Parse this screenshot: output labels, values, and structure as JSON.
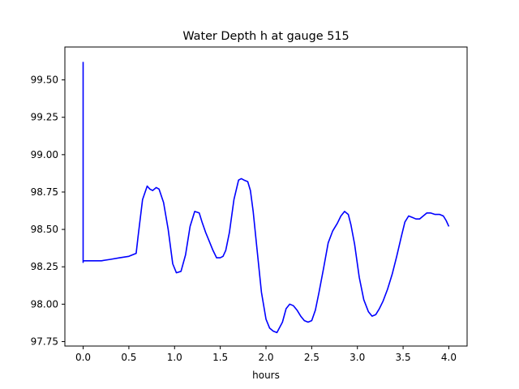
{
  "chart_data": {
    "type": "line",
    "title": "Water Depth h at gauge 515",
    "xlabel": "hours",
    "ylabel": "",
    "xlim": [
      -0.2,
      4.2
    ],
    "ylim": [
      97.72,
      99.72
    ],
    "xticks": [
      0.0,
      0.5,
      1.0,
      1.5,
      2.0,
      2.5,
      3.0,
      3.5,
      4.0
    ],
    "xtick_labels": [
      "0.0",
      "0.5",
      "1.0",
      "1.5",
      "2.0",
      "2.5",
      "3.0",
      "3.5",
      "4.0"
    ],
    "yticks": [
      97.75,
      98.0,
      98.25,
      98.5,
      98.75,
      99.0,
      99.25,
      99.5
    ],
    "ytick_labels": [
      "97.75",
      "98.00",
      "98.25",
      "98.50",
      "98.75",
      "99.00",
      "99.25",
      "99.50"
    ],
    "grid": false,
    "series": [
      {
        "color": "#0000ff",
        "x": [
          0.0,
          0.0,
          0.0,
          0.1,
          0.2,
          0.3,
          0.4,
          0.5,
          0.58,
          0.6,
          0.65,
          0.7,
          0.73,
          0.76,
          0.8,
          0.83,
          0.88,
          0.93,
          0.98,
          1.02,
          1.07,
          1.12,
          1.17,
          1.22,
          1.27,
          1.3,
          1.34,
          1.38,
          1.42,
          1.46,
          1.5,
          1.53,
          1.56,
          1.6,
          1.65,
          1.7,
          1.73,
          1.76,
          1.8,
          1.83,
          1.86,
          1.9,
          1.95,
          2.0,
          2.04,
          2.08,
          2.12,
          2.18,
          2.22,
          2.26,
          2.3,
          2.34,
          2.38,
          2.42,
          2.46,
          2.5,
          2.54,
          2.58,
          2.63,
          2.68,
          2.73,
          2.78,
          2.82,
          2.86,
          2.9,
          2.93,
          2.97,
          3.02,
          3.07,
          3.12,
          3.16,
          3.2,
          3.24,
          3.28,
          3.33,
          3.38,
          3.43,
          3.48,
          3.52,
          3.56,
          3.6,
          3.64,
          3.68,
          3.72,
          3.76,
          3.8,
          3.85,
          3.9,
          3.94,
          3.97,
          4.0
        ],
        "y": [
          99.62,
          98.28,
          98.29,
          98.29,
          98.29,
          98.3,
          98.31,
          98.32,
          98.34,
          98.45,
          98.7,
          98.79,
          98.77,
          98.76,
          98.78,
          98.77,
          98.68,
          98.5,
          98.27,
          98.21,
          98.22,
          98.33,
          98.52,
          98.62,
          98.61,
          98.55,
          98.48,
          98.42,
          98.36,
          98.31,
          98.31,
          98.32,
          98.36,
          98.48,
          98.7,
          98.83,
          98.84,
          98.83,
          98.82,
          98.76,
          98.62,
          98.38,
          98.08,
          97.9,
          97.84,
          97.82,
          97.81,
          97.88,
          97.97,
          98.0,
          97.99,
          97.96,
          97.92,
          97.89,
          97.88,
          97.89,
          97.96,
          98.08,
          98.24,
          98.41,
          98.49,
          98.54,
          98.59,
          98.62,
          98.6,
          98.53,
          98.4,
          98.18,
          98.03,
          97.95,
          97.92,
          97.93,
          97.97,
          98.02,
          98.1,
          98.2,
          98.32,
          98.45,
          98.55,
          98.59,
          98.58,
          98.57,
          98.57,
          98.59,
          98.61,
          98.61,
          98.6,
          98.6,
          98.59,
          98.56,
          98.52
        ]
      }
    ]
  }
}
